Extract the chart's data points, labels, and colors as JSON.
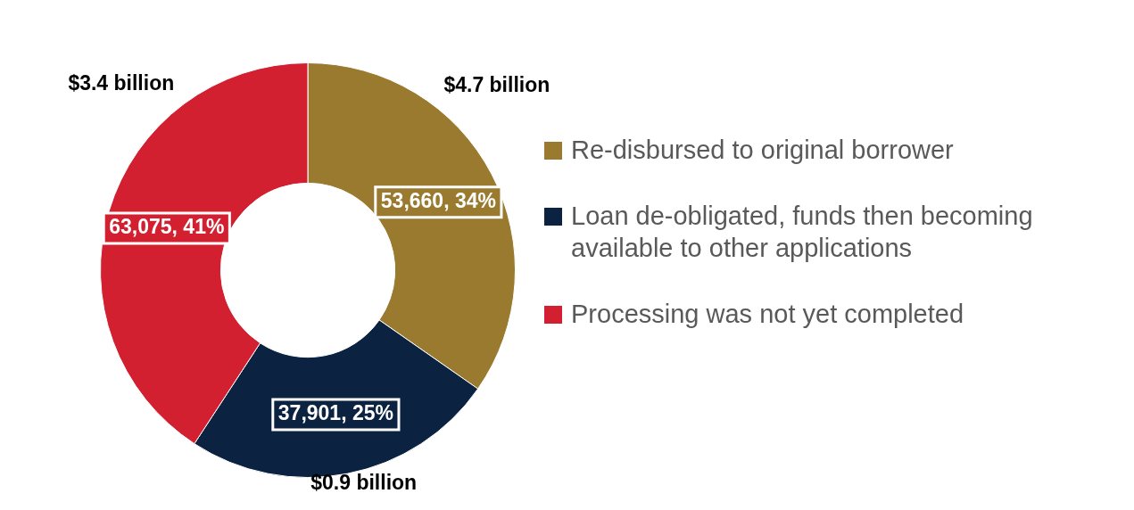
{
  "chart_data": {
    "type": "donut",
    "categories": [
      "Re-disbursed to original borrower",
      "Loan de-obligated, funds then becoming available to other applications",
      "Processing was not yet completed"
    ],
    "values": [
      53660,
      37901,
      63075
    ],
    "colors": [
      "#9a7a2e",
      "#0b2240",
      "#d22030"
    ],
    "value_labels": [
      "53,660, 34%",
      "37,901, 25%",
      "63,075, 41%"
    ],
    "annotations": [
      "$4.7 billion",
      "$0.9 billion",
      "$3.4 billion"
    ],
    "legend": "right"
  }
}
